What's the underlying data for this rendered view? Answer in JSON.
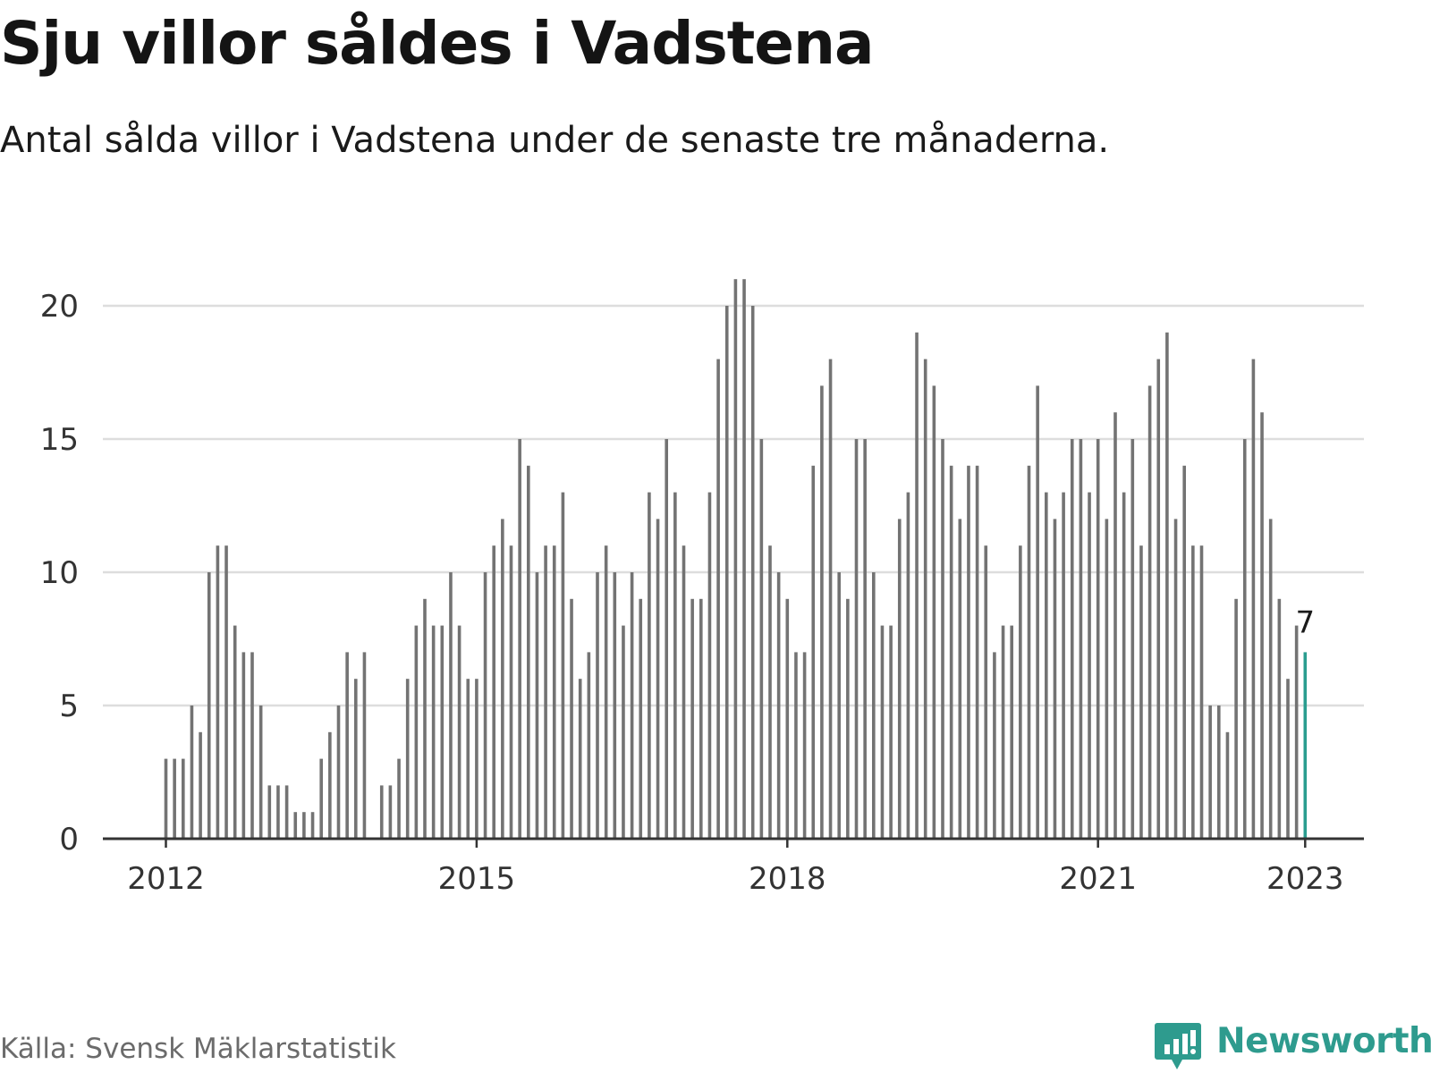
{
  "title": "Sju villor såldes i Vadstena",
  "subtitle": "Antal sålda villor i Vadstena under de senaste tre månaderna.",
  "source": "Källa: Svensk Mäklarstatistik",
  "brand": {
    "name": "Newsworthy",
    "color": "#2e9b8e",
    "logo_icon": "bar-chart-speech-bubble-icon"
  },
  "colors": {
    "bar": "#737373",
    "highlight": "#2a9d8f",
    "grid": "#dddddd",
    "axis": "#333333"
  },
  "chart_data": {
    "type": "bar",
    "x_unit": "month",
    "series": [
      {
        "start_month": "2012-01",
        "values": [
          3,
          3,
          3,
          5,
          4,
          10,
          11,
          11,
          8,
          7,
          7,
          5,
          2,
          2,
          2,
          1,
          1,
          1,
          3,
          4,
          5,
          7,
          6,
          7,
          null,
          2,
          2,
          3,
          6,
          8,
          9,
          8,
          8,
          10,
          8,
          6,
          6,
          10,
          11,
          12,
          11,
          15,
          14,
          10,
          11,
          11,
          13,
          9,
          6,
          7,
          10,
          11,
          10,
          8,
          10,
          9,
          13,
          12,
          15,
          13,
          11,
          9,
          9,
          13,
          18,
          20,
          21,
          21,
          20,
          15,
          11,
          10,
          9,
          7,
          7,
          14,
          17,
          18,
          10,
          9,
          15,
          15,
          10,
          8,
          8,
          12,
          13,
          19,
          18,
          17,
          15,
          14,
          12,
          14,
          14,
          11,
          7,
          8,
          8,
          11,
          14,
          17,
          13,
          12,
          13,
          15,
          15,
          13,
          15,
          12,
          16,
          13,
          15,
          11,
          17,
          18,
          19,
          12,
          14,
          11,
          11,
          5,
          5,
          4,
          9,
          15,
          18,
          16,
          12,
          9,
          6,
          8,
          7
        ]
      }
    ],
    "highlight": {
      "month": "2023-01",
      "value": 7,
      "label": "7"
    },
    "x_ticks": [
      "2012",
      "2015",
      "2018",
      "2021",
      "2023"
    ],
    "y_ticks": [
      0,
      5,
      10,
      15,
      20
    ],
    "ylim": [
      0,
      21
    ],
    "grid": "horizontal",
    "legend": "none"
  }
}
